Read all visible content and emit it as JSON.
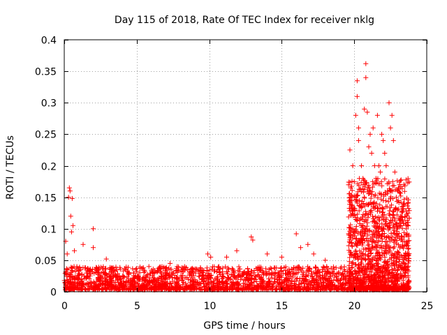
{
  "chart_data": {
    "type": "scatter",
    "title": "Day 115 of 2018, Rate Of TEC Index for receiver nklg",
    "xlabel": "GPS time / hours",
    "ylabel": "ROTI / TECUs",
    "xlim": [
      0,
      25
    ],
    "ylim": [
      0,
      0.4
    ],
    "xticks": [
      0,
      5,
      10,
      15,
      20,
      25
    ],
    "xtick_labels": [
      "0",
      "5",
      "10",
      "15",
      "20",
      "25"
    ],
    "yticks": [
      0,
      0.05,
      0.1,
      0.15,
      0.2,
      0.25,
      0.3,
      0.35,
      0.4
    ],
    "ytick_labels": [
      "0",
      "0.05",
      "0.1",
      "0.15",
      "0.2",
      "0.25",
      "0.3",
      "0.35",
      "0.4"
    ],
    "grid": true,
    "marker": "+",
    "color": "#ff0000",
    "series": [
      {
        "name": "ROTI",
        "points": [
          [
            0.1,
            0.08
          ],
          [
            0.2,
            0.06
          ],
          [
            0.3,
            0.15
          ],
          [
            0.35,
            0.165
          ],
          [
            0.4,
            0.16
          ],
          [
            0.45,
            0.12
          ],
          [
            0.5,
            0.095
          ],
          [
            0.55,
            0.148
          ],
          [
            0.6,
            0.105
          ],
          [
            0.7,
            0.065
          ],
          [
            1.3,
            0.075
          ],
          [
            2.0,
            0.1
          ],
          [
            2.0,
            0.07
          ],
          [
            2.9,
            0.052
          ],
          [
            7.3,
            0.045
          ],
          [
            9.9,
            0.06
          ],
          [
            10.1,
            0.055
          ],
          [
            11.2,
            0.055
          ],
          [
            11.9,
            0.065
          ],
          [
            12.9,
            0.087
          ],
          [
            13.0,
            0.082
          ],
          [
            14.0,
            0.06
          ],
          [
            15.0,
            0.055
          ],
          [
            16.0,
            0.092
          ],
          [
            16.3,
            0.07
          ],
          [
            16.8,
            0.075
          ],
          [
            17.2,
            0.06
          ],
          [
            18.0,
            0.05
          ],
          [
            19.7,
            0.225
          ],
          [
            19.9,
            0.2
          ],
          [
            19.9,
            0.085
          ],
          [
            20.0,
            0.15
          ],
          [
            20.1,
            0.28
          ],
          [
            20.2,
            0.335
          ],
          [
            20.2,
            0.31
          ],
          [
            20.3,
            0.26
          ],
          [
            20.3,
            0.24
          ],
          [
            20.5,
            0.2
          ],
          [
            20.6,
            0.18
          ],
          [
            20.7,
            0.29
          ],
          [
            20.8,
            0.34
          ],
          [
            20.8,
            0.362
          ],
          [
            20.9,
            0.285
          ],
          [
            21.0,
            0.23
          ],
          [
            21.1,
            0.25
          ],
          [
            21.2,
            0.22
          ],
          [
            21.3,
            0.26
          ],
          [
            21.4,
            0.2
          ],
          [
            21.5,
            0.18
          ],
          [
            21.6,
            0.28
          ],
          [
            21.7,
            0.2
          ],
          [
            21.8,
            0.19
          ],
          [
            21.9,
            0.25
          ],
          [
            22.0,
            0.24
          ],
          [
            22.1,
            0.22
          ],
          [
            22.2,
            0.2
          ],
          [
            22.3,
            0.16
          ],
          [
            22.4,
            0.3
          ],
          [
            22.5,
            0.26
          ],
          [
            22.6,
            0.28
          ],
          [
            22.7,
            0.24
          ],
          [
            22.8,
            0.19
          ],
          [
            22.9,
            0.15
          ],
          [
            23.0,
            0.16
          ],
          [
            23.2,
            0.12
          ],
          [
            23.4,
            0.14
          ],
          [
            23.6,
            0.1
          ],
          [
            23.7,
            0.08
          ]
        ],
        "baseline_band": {
          "x_range": [
            0,
            23.8
          ],
          "y_min": 0.003,
          "y_typical_max": 0.04,
          "storm_x_range": [
            19.6,
            23.8
          ],
          "storm_y_typical_max": 0.18
        }
      }
    ]
  }
}
